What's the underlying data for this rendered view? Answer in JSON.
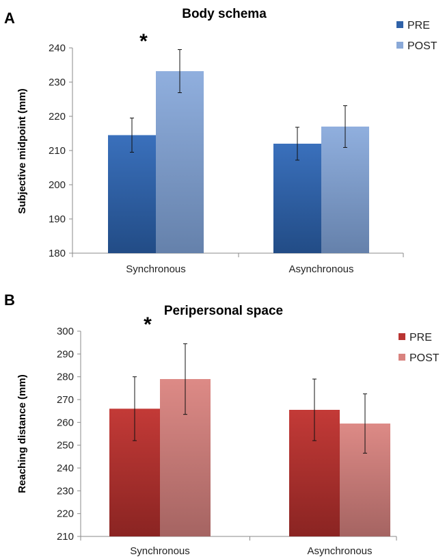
{
  "chart_data": [
    {
      "type": "bar",
      "panel": "A",
      "title": "Body schema",
      "ylabel": "Subjective midpoint (mm)",
      "xlabel": "",
      "ylim": [
        180,
        240
      ],
      "yticks": [
        180,
        190,
        200,
        210,
        220,
        230,
        240
      ],
      "categories": [
        "Synchronous",
        "Asynchronous"
      ],
      "series": [
        {
          "name": "PRE",
          "values": [
            214.5,
            212.0
          ],
          "errors": [
            5.0,
            4.8
          ],
          "color": "#2F62A8"
        },
        {
          "name": "POST",
          "values": [
            233.2,
            217.0
          ],
          "errors": [
            6.3,
            6.1
          ],
          "color": "#8AA9D8"
        }
      ],
      "annotations": [
        {
          "text": "*",
          "category": "Synchronous"
        }
      ],
      "legend": "top-right",
      "grid": false
    },
    {
      "type": "bar",
      "panel": "B",
      "title": "Peripersonal space",
      "ylabel": "Reaching distance (mm)",
      "xlabel": "",
      "ylim": [
        210,
        300
      ],
      "yticks": [
        210,
        220,
        230,
        240,
        250,
        260,
        270,
        280,
        290,
        300
      ],
      "categories": [
        "Synchronous",
        "Asynchronous"
      ],
      "series": [
        {
          "name": "PRE",
          "values": [
            266.0,
            265.5
          ],
          "errors": [
            14.0,
            13.5
          ],
          "color": "#B93432"
        },
        {
          "name": "POST",
          "values": [
            279.0,
            259.5
          ],
          "errors": [
            15.5,
            13.0
          ],
          "color": "#D9837F"
        }
      ],
      "annotations": [
        {
          "text": "*",
          "category": "Synchronous"
        }
      ],
      "legend": "top-right",
      "grid": false
    }
  ]
}
